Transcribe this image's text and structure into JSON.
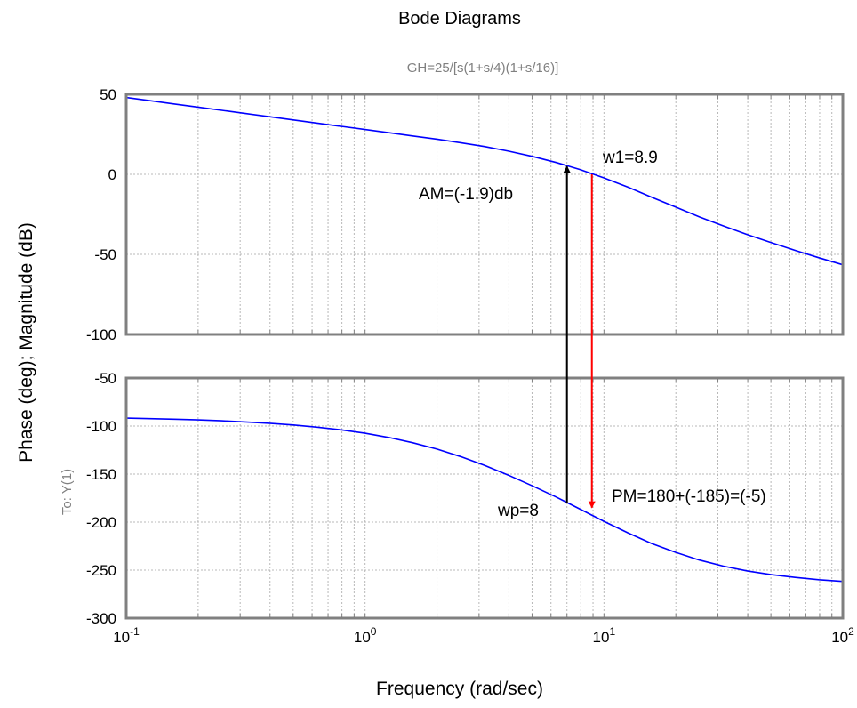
{
  "chart_data": {
    "type": "line",
    "title": "Bode Diagrams",
    "subtitle": "GH=25/[s(1+s/4)(1+s/16)]",
    "xlabel": "Frequency (rad/sec)",
    "ylabel": "Phase (deg); Magnitude (dB)",
    "io_label": "To: Y(1)",
    "x_scale": "log",
    "xlim": [
      0.1,
      100
    ],
    "x_ticks": [
      {
        "value": 0.1,
        "base": "10",
        "exp": "-1"
      },
      {
        "value": 1,
        "base": "10",
        "exp": "0"
      },
      {
        "value": 10,
        "base": "10",
        "exp": "1"
      },
      {
        "value": 100,
        "base": "10",
        "exp": "2"
      }
    ],
    "grid": true,
    "panels": [
      {
        "name": "magnitude",
        "ylim": [
          -100,
          50
        ],
        "y_ticks": [
          "50",
          "0",
          "-50",
          "-100"
        ],
        "y_tick_values": [
          50,
          0,
          -50,
          -100
        ],
        "color": "#0000ff",
        "x": [
          0.1,
          0.126,
          0.158,
          0.2,
          0.251,
          0.316,
          0.398,
          0.501,
          0.631,
          0.794,
          1,
          1.26,
          1.58,
          2,
          2.51,
          3.16,
          3.98,
          5.01,
          6.31,
          7.94,
          10,
          12.6,
          15.8,
          20,
          25.1,
          31.6,
          39.8,
          50.1,
          63.1,
          79.4,
          100
        ],
        "y": [
          48,
          46,
          44,
          42,
          40,
          38,
          36,
          34,
          32,
          30,
          28,
          26,
          24,
          22,
          19.8,
          17.4,
          14.5,
          11.2,
          7.4,
          3.0,
          -2.2,
          -8.0,
          -14.2,
          -20.5,
          -26.6,
          -32.2,
          -37.6,
          -42.6,
          -47.5,
          -52.1,
          -56.5
        ]
      },
      {
        "name": "phase",
        "ylim": [
          -300,
          -50
        ],
        "y_ticks": [
          "-50",
          "-100",
          "-150",
          "-200",
          "-250",
          "-300"
        ],
        "y_tick_values": [
          -50,
          -100,
          -150,
          -200,
          -250,
          -300
        ],
        "color": "#0000ff",
        "x": [
          0.1,
          0.126,
          0.158,
          0.2,
          0.251,
          0.316,
          0.398,
          0.501,
          0.631,
          0.794,
          1,
          1.26,
          1.58,
          2,
          2.51,
          3.16,
          3.98,
          5.01,
          6.31,
          7.94,
          10,
          12.6,
          15.8,
          20,
          25.1,
          31.6,
          39.8,
          50.1,
          63.1,
          79.4,
          100
        ],
        "y": [
          -91.8,
          -92.3,
          -92.9,
          -93.6,
          -94.5,
          -95.7,
          -97.1,
          -98.9,
          -101.2,
          -104.0,
          -107.5,
          -111.9,
          -117.3,
          -124.0,
          -131.8,
          -140.8,
          -151.1,
          -162.2,
          -173.9,
          -186.5,
          -199.2,
          -211.2,
          -222.2,
          -231.6,
          -239.5,
          -245.8,
          -250.8,
          -254.7,
          -257.6,
          -260.0,
          -261.8
        ]
      }
    ],
    "annotations": [
      {
        "text": "w1=8.9"
      },
      {
        "text": "AM=(-1.9)db"
      },
      {
        "text": "wp=8"
      },
      {
        "text": "PM=180+(-185)=(-5)"
      }
    ],
    "arrows": [
      {
        "color": "#000000",
        "x": 7,
        "from_phase": -180,
        "to_db": 5
      },
      {
        "color": "#ff0000",
        "x": 8.9,
        "from_db": 0,
        "to_phase": -185
      }
    ]
  }
}
